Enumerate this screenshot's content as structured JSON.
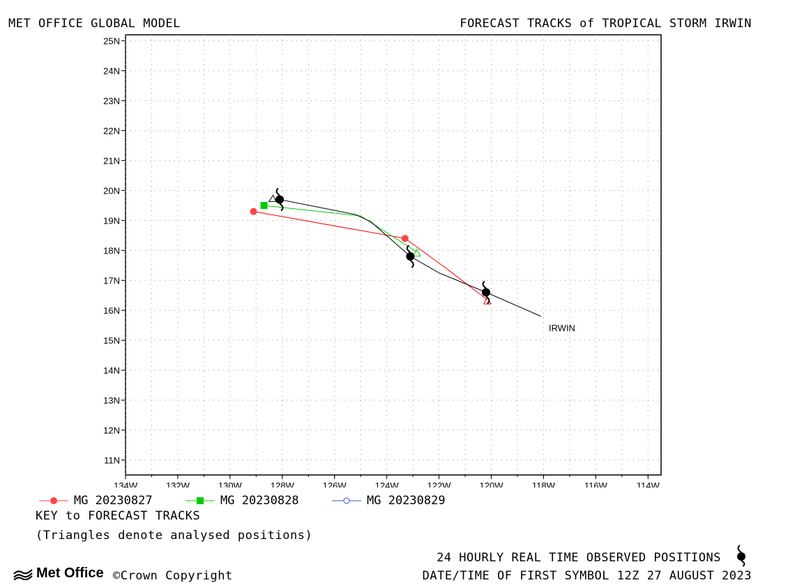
{
  "header": {
    "left_title": "MET OFFICE GLOBAL MODEL",
    "right_title": "FORECAST TRACKS of TROPICAL STORM IRWIN"
  },
  "map": {
    "lon_range": [
      -134,
      -113.5
    ],
    "lat_range": [
      10.5,
      25.2
    ],
    "grid": true,
    "lat_ticks": [
      {
        "value": 25,
        "label": "25N"
      },
      {
        "value": 24,
        "label": "24N"
      },
      {
        "value": 23,
        "label": "23N"
      },
      {
        "value": 22,
        "label": "22N"
      },
      {
        "value": 21,
        "label": "21N"
      },
      {
        "value": 20,
        "label": "20N"
      },
      {
        "value": 19,
        "label": "19N"
      },
      {
        "value": 18,
        "label": "18N"
      },
      {
        "value": 17,
        "label": "17N"
      },
      {
        "value": 16,
        "label": "16N"
      },
      {
        "value": 15,
        "label": "15N"
      },
      {
        "value": 14,
        "label": "14N"
      },
      {
        "value": 13,
        "label": "13N"
      },
      {
        "value": 12,
        "label": "12N"
      },
      {
        "value": 11,
        "label": "11N"
      }
    ],
    "lon_ticks": [
      {
        "value": -134,
        "label": "134W"
      },
      {
        "value": -132,
        "label": "132W"
      },
      {
        "value": -130,
        "label": "130W"
      },
      {
        "value": -128,
        "label": "128W"
      },
      {
        "value": -126,
        "label": "126W"
      },
      {
        "value": -124,
        "label": "124W"
      },
      {
        "value": -122,
        "label": "122W"
      },
      {
        "value": -120,
        "label": "120W"
      },
      {
        "value": -118,
        "label": "118W"
      },
      {
        "value": -116,
        "label": "116W"
      },
      {
        "value": -114,
        "label": "114W"
      }
    ],
    "storm_label": {
      "text": "IRWIN",
      "lon": -117.8,
      "lat": 15.4
    },
    "observed_track": {
      "color": "#000000",
      "points": [
        {
          "lon": -118.1,
          "lat": 15.8
        },
        {
          "lon": -120.2,
          "lat": 16.6
        },
        {
          "lon": -122.0,
          "lat": 17.25
        },
        {
          "lon": -123.1,
          "lat": 17.8
        },
        {
          "lon": -124.6,
          "lat": 18.95
        },
        {
          "lon": -125.2,
          "lat": 19.2
        },
        {
          "lon": -128.1,
          "lat": 19.7
        }
      ],
      "symbols": [
        {
          "lon": -120.2,
          "lat": 16.6
        },
        {
          "lon": -123.1,
          "lat": 17.8
        },
        {
          "lon": -128.1,
          "lat": 19.7
        }
      ]
    },
    "forecast_tracks": [
      {
        "name": "MG 20230827",
        "color": "#ff0000",
        "marker": "circle",
        "points": [
          {
            "lon": -120.15,
            "lat": 16.35
          },
          {
            "lon": -121.8,
            "lat": 17.45
          },
          {
            "lon": -123.3,
            "lat": 18.4
          },
          {
            "lon": -129.1,
            "lat": 19.3
          }
        ],
        "analysed": {
          "lon": -120.15,
          "lat": 16.35
        },
        "markers": [
          {
            "lon": -123.3,
            "lat": 18.4
          },
          {
            "lon": -129.1,
            "lat": 19.3
          }
        ]
      },
      {
        "name": "MG 20230828",
        "color": "#00cc00",
        "marker": "square",
        "points": [
          {
            "lon": -122.85,
            "lat": 17.95
          },
          {
            "lon": -125.0,
            "lat": 19.15
          },
          {
            "lon": -128.7,
            "lat": 19.5
          }
        ],
        "analysed": {
          "lon": -122.85,
          "lat": 17.95
        },
        "markers": [
          {
            "lon": -128.7,
            "lat": 19.5
          }
        ]
      },
      {
        "name": "MG 20230829",
        "color": "#3355cc",
        "marker": "open-circle",
        "points": [],
        "analysed": {
          "lon": -128.4,
          "lat": 19.6
        },
        "markers": []
      }
    ]
  },
  "legend": {
    "items": [
      {
        "label": "MG 20230827",
        "color": "#ff4444",
        "marker": "circle"
      },
      {
        "label": "MG 20230828",
        "color": "#00cc00",
        "marker": "square"
      },
      {
        "label": "MG 20230829",
        "color": "#3355cc",
        "marker": "open-circle"
      }
    ],
    "key_title": "KEY to FORECAST TRACKS",
    "key_note": "(Triangles denote analysed positions)"
  },
  "footer": {
    "logo_text": "Met Office",
    "copyright": "©Crown Copyright",
    "obs_label": "24 HOURLY REAL TIME OBSERVED POSITIONS",
    "first_symbol": "DATE/TIME OF FIRST SYMBOL 12Z 27 AUGUST 2023"
  }
}
